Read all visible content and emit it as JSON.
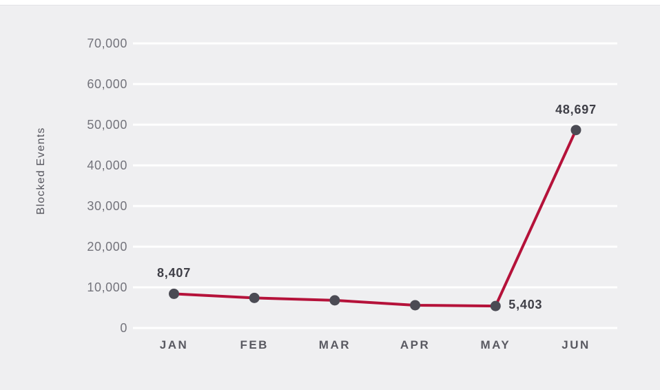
{
  "chart_data": {
    "type": "line",
    "title": "",
    "xlabel": "",
    "ylabel": "Blocked Events",
    "categories": [
      "JAN",
      "FEB",
      "MAR",
      "APR",
      "MAY",
      "JUN"
    ],
    "series": [
      {
        "name": "Blocked Events",
        "values": [
          8407,
          7400,
          6800,
          5600,
          5403,
          48697
        ]
      }
    ],
    "point_labels": [
      {
        "index": 0,
        "text": "8,407",
        "placement": "above"
      },
      {
        "index": 4,
        "text": "5,403",
        "placement": "right"
      },
      {
        "index": 5,
        "text": "48,697",
        "placement": "above"
      }
    ],
    "yticks": [
      0,
      10000,
      20000,
      30000,
      40000,
      50000,
      60000,
      70000
    ],
    "ytick_labels": [
      "0",
      "10,000",
      "20,000",
      "30,000",
      "40,000",
      "50,000",
      "60,000",
      "70,000"
    ],
    "ylim": [
      0,
      70000
    ],
    "grid": true,
    "legend": "none"
  },
  "colors": {
    "background": "#efeff1",
    "gridline": "#ffffff",
    "line": "#b5123a",
    "marker": "#4b4b54",
    "tick_text": "#73737b",
    "month_text": "#595961",
    "data_label_text": "#3f3f47",
    "axis_label_text": "#55555d"
  }
}
